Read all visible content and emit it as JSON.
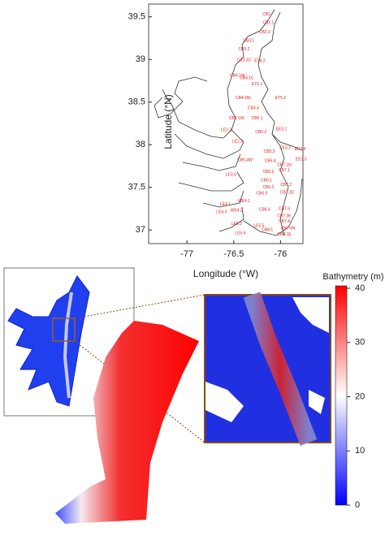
{
  "station_map": {
    "xlabel": "Longitude (°W)",
    "ylabel": "Latitude (°N)",
    "xlim": [
      -77.41,
      -75.76
    ],
    "ylim": [
      36.84,
      39.65
    ],
    "xticks": [
      -77,
      -76.5,
      -76
    ],
    "yticks": [
      37,
      37.5,
      38,
      38.5,
      39,
      39.5
    ],
    "stations": [
      {
        "name": "CB1",
        "lon": -76.15,
        "lat": 39.53
      },
      {
        "name": "CB2.1",
        "lon": -76.13,
        "lat": 39.43
      },
      {
        "name": "CB2.2",
        "lon": -76.17,
        "lat": 39.32
      },
      {
        "name": "CB3.1",
        "lon": -76.34,
        "lat": 39.22
      },
      {
        "name": "CB3.2",
        "lon": -76.39,
        "lat": 39.12
      },
      {
        "name": "CB3.3C",
        "lon": -76.39,
        "lat": 38.99
      },
      {
        "name": "ET4.2",
        "lon": -76.22,
        "lat": 38.98
      },
      {
        "name": "CB4.1W",
        "lon": -76.46,
        "lat": 38.81
      },
      {
        "name": "CB4.1C",
        "lon": -76.36,
        "lat": 38.78
      },
      {
        "name": "ET5.1",
        "lon": -76.25,
        "lat": 38.71
      },
      {
        "name": "CB4.3W",
        "lon": -76.4,
        "lat": 38.55
      },
      {
        "name": "ET5.2",
        "lon": -76.0,
        "lat": 38.55
      },
      {
        "name": "CB4.4",
        "lon": -76.29,
        "lat": 38.43
      },
      {
        "name": "CB5.1W",
        "lon": -76.47,
        "lat": 38.31
      },
      {
        "name": "CB5.1",
        "lon": -76.25,
        "lat": 38.31
      },
      {
        "name": "LE2.2",
        "lon": -76.58,
        "lat": 38.17
      },
      {
        "name": "CB5.2",
        "lon": -76.21,
        "lat": 38.15
      },
      {
        "name": "EE3.1",
        "lon": -75.99,
        "lat": 38.18
      },
      {
        "name": "LE2.3",
        "lon": -76.46,
        "lat": 38.04
      },
      {
        "name": "CB5.3",
        "lon": -76.12,
        "lat": 37.92
      },
      {
        "name": "EE3.2",
        "lon": -75.95,
        "lat": 37.96
      },
      {
        "name": "EE3.4",
        "lon": -75.79,
        "lat": 37.95
      },
      {
        "name": "CB5.4W",
        "lon": -76.38,
        "lat": 37.82
      },
      {
        "name": "CB5.4",
        "lon": -76.11,
        "lat": 37.81
      },
      {
        "name": "EE3.5",
        "lon": -75.78,
        "lat": 37.83
      },
      {
        "name": "CB7.1N",
        "lon": -75.96,
        "lat": 37.76
      },
      {
        "name": "CB5.5",
        "lon": -76.13,
        "lat": 37.68
      },
      {
        "name": "CB7.1",
        "lon": -75.96,
        "lat": 37.7
      },
      {
        "name": "LE3.6",
        "lon": -76.53,
        "lat": 37.65
      },
      {
        "name": "CB6.1",
        "lon": -76.15,
        "lat": 37.58
      },
      {
        "name": "CB6.2",
        "lon": -76.13,
        "lat": 37.5
      },
      {
        "name": "CB7.2",
        "lon": -75.94,
        "lat": 37.53
      },
      {
        "name": "CB6.3",
        "lon": -76.2,
        "lat": 37.43
      },
      {
        "name": "CB7.2E",
        "lon": -75.93,
        "lat": 37.44
      },
      {
        "name": "WE4.1",
        "lon": -76.39,
        "lat": 37.34
      },
      {
        "name": "LE4.1",
        "lon": -76.59,
        "lat": 37.3
      },
      {
        "name": "LE4.3",
        "lon": -76.63,
        "lat": 37.21
      },
      {
        "name": "WE4.2",
        "lon": -76.47,
        "lat": 37.23
      },
      {
        "name": "CB6.4",
        "lon": -76.17,
        "lat": 37.24
      },
      {
        "name": "CB7.3",
        "lon": -75.96,
        "lat": 37.25
      },
      {
        "name": "CB7.3E",
        "lon": -75.96,
        "lat": 37.16
      },
      {
        "name": "CB7.4",
        "lon": -75.96,
        "lat": 37.1
      },
      {
        "name": "LE5.3",
        "lon": -76.47,
        "lat": 37.07
      },
      {
        "name": "LE5.5",
        "lon": -76.23,
        "lat": 37.05
      },
      {
        "name": "CB8.1",
        "lon": -76.14,
        "lat": 37.0
      },
      {
        "name": "CB7.4N",
        "lon": -75.92,
        "lat": 37.02
      },
      {
        "name": "LE5.4",
        "lon": -76.43,
        "lat": 36.96
      },
      {
        "name": "CB8.1E",
        "lon": -75.96,
        "lat": 36.95
      }
    ]
  },
  "bathymetry": {
    "colorbar_title": "Bathymetry (m)",
    "clim": [
      0,
      40
    ],
    "ticks": [
      0,
      10,
      20,
      30,
      40
    ]
  }
}
